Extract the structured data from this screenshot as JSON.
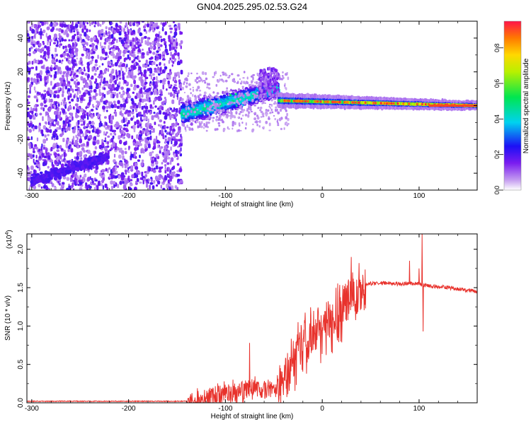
{
  "title": "GN04.2025.295.02.53.G24",
  "chart_data": [
    {
      "type": "heatmap",
      "name": "spectrogram",
      "xlabel": "Height of straight line (km)",
      "ylabel": "Frequency (Hz)",
      "xlim": [
        -305,
        160
      ],
      "ylim": [
        -50,
        50
      ],
      "xticks": [
        -300,
        -200,
        -100,
        0,
        100
      ],
      "yticks": [
        -40,
        -20,
        0,
        20,
        40
      ],
      "colorbar": {
        "label": "Normalized spectral amplitude",
        "range": [
          0.0,
          0.95
        ],
        "ticks": [
          "0.0",
          "0.2",
          "0.4",
          "0.6",
          "0.8"
        ],
        "tick_values": [
          0.0,
          0.2,
          0.4,
          0.6,
          0.8
        ]
      },
      "regions": [
        {
          "name": "noise",
          "x": [
            -305,
            -145
          ],
          "freq": [
            -50,
            50
          ],
          "amplitude": 0.12
        },
        {
          "name": "low-frequency drift",
          "x": [
            -300,
            -220
          ],
          "freq": [
            -45,
            -30
          ],
          "amplitude": 0.18
        },
        {
          "name": "emerging signal",
          "x": [
            -145,
            -45
          ],
          "freq_center": [
            -5,
            10
          ],
          "amplitude": 0.3
        },
        {
          "name": "peak burst",
          "x": [
            -65,
            -45
          ],
          "freq": [
            5,
            22
          ],
          "amplitude": 0.15
        },
        {
          "name": "stable signal",
          "x": [
            -45,
            160
          ],
          "freq_center": [
            3,
            0
          ],
          "amplitude": 0.7
        }
      ]
    },
    {
      "type": "line",
      "name": "snr",
      "xlabel": "Height of straight line (km)",
      "ylabel": "SNR (10 * v/v)",
      "yscale_label": "(x10",
      "yscale_exponent": "4",
      "xlim": [
        -305,
        160
      ],
      "ylim": [
        0,
        2.2
      ],
      "xticks": [
        -300,
        -200,
        -100,
        0,
        100
      ],
      "yticks": [
        "0.0",
        "0.5",
        "1.0",
        "1.5",
        "2.0"
      ],
      "ytick_values": [
        0.0,
        0.5,
        1.0,
        1.5,
        2.0
      ],
      "color": "#e8322c",
      "anchors": {
        "x": [
          -305,
          -140,
          -125,
          -100,
          -75,
          -50,
          -40,
          -30,
          -20,
          -10,
          0,
          10,
          20,
          30,
          40,
          45,
          60,
          80,
          100,
          105,
          130,
          160
        ],
        "y": [
          0.02,
          0.02,
          0.08,
          0.15,
          0.22,
          0.18,
          0.3,
          0.6,
          0.85,
          1.0,
          1.05,
          1.15,
          1.25,
          1.45,
          1.5,
          1.55,
          1.56,
          1.55,
          1.55,
          1.53,
          1.5,
          1.45
        ]
      },
      "spikes": [
        {
          "x": -75,
          "y": 0.78
        },
        {
          "x": -25,
          "y": 1.05
        },
        {
          "x": 30,
          "y": 1.9
        },
        {
          "x": 38,
          "y": 1.82
        },
        {
          "x": 90,
          "y": 1.85
        },
        {
          "x": 100,
          "y": 1.75
        },
        {
          "x": 103,
          "y": 2.2
        },
        {
          "x": 104,
          "y": 0.93
        }
      ]
    }
  ]
}
